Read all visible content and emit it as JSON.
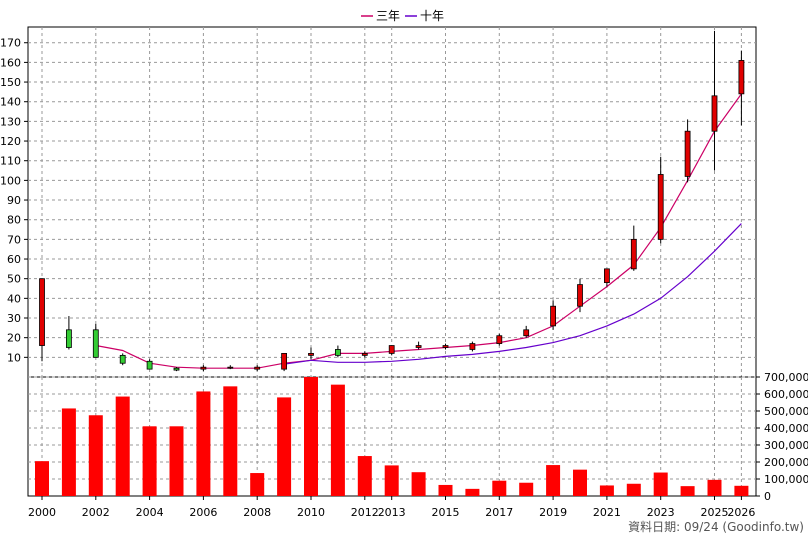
{
  "legend": {
    "items": [
      {
        "label": "三年",
        "color": "#cc0066"
      },
      {
        "label": "十年",
        "color": "#6600cc"
      }
    ]
  },
  "footer": {
    "text": "資料日期: 09/24 (Goodinfo.tw)"
  },
  "chart_data": [
    {
      "type": "candlestick",
      "panel": "price",
      "grid": true,
      "ylim": [
        0,
        178
      ],
      "yticks": [
        10,
        20,
        30,
        40,
        50,
        60,
        70,
        80,
        90,
        100,
        110,
        120,
        130,
        140,
        150,
        160,
        170
      ],
      "x_tick_labels": [
        "2000",
        "2002",
        "2004",
        "2006",
        "2008",
        "2010",
        "2012",
        "2013",
        "2015",
        "2017",
        "2019",
        "2021",
        "2023",
        "2025",
        "2026"
      ],
      "x": [
        "2000",
        "2001",
        "2002",
        "2003",
        "2004",
        "2005",
        "2006",
        "2007",
        "2008",
        "2009",
        "2010",
        "2011",
        "2012",
        "2013",
        "2014",
        "2015",
        "2016",
        "2017",
        "2018",
        "2019",
        "2020",
        "2021",
        "2022",
        "2023",
        "2024",
        "2025",
        "2026"
      ],
      "candles": [
        {
          "open": 16,
          "close": 50,
          "high": 50,
          "low": 8
        },
        {
          "open": 24,
          "close": 15,
          "high": 31,
          "low": 14
        },
        {
          "open": 24,
          "close": 10,
          "high": 27,
          "low": 10
        },
        {
          "open": 11,
          "close": 7,
          "high": 12,
          "low": 6
        },
        {
          "open": 8,
          "close": 4,
          "high": 9,
          "low": 4
        },
        {
          "open": 4.5,
          "close": 3.5,
          "high": 5,
          "low": 3
        },
        {
          "open": 4,
          "close": 5,
          "high": 6,
          "low": 3
        },
        {
          "open": 5,
          "close": 5,
          "high": 6,
          "low": 4
        },
        {
          "open": 4,
          "close": 5,
          "high": 6,
          "low": 3
        },
        {
          "open": 4,
          "close": 12,
          "high": 12,
          "low": 3
        },
        {
          "open": 11,
          "close": 12,
          "high": 15,
          "low": 9
        },
        {
          "open": 14,
          "close": 11,
          "high": 16,
          "low": 10
        },
        {
          "open": 11,
          "close": 12,
          "high": 13,
          "low": 10
        },
        {
          "open": 12,
          "close": 16,
          "high": 16,
          "low": 11
        },
        {
          "open": 15,
          "close": 16,
          "high": 18,
          "low": 14
        },
        {
          "open": 15,
          "close": 16,
          "high": 17,
          "low": 14
        },
        {
          "open": 14,
          "close": 17,
          "high": 18,
          "low": 13
        },
        {
          "open": 17,
          "close": 21,
          "high": 22,
          "low": 16
        },
        {
          "open": 21,
          "close": 24,
          "high": 26,
          "low": 20
        },
        {
          "open": 26,
          "close": 36,
          "high": 39,
          "low": 24
        },
        {
          "open": 36,
          "close": 47,
          "high": 50,
          "low": 33
        },
        {
          "open": 48,
          "close": 55,
          "high": 55,
          "low": 46
        },
        {
          "open": 55,
          "close": 70,
          "high": 77,
          "low": 54
        },
        {
          "open": 70,
          "close": 103,
          "high": 112,
          "low": 68
        },
        {
          "open": 102,
          "close": 125,
          "high": 131,
          "low": 99
        },
        {
          "open": 125,
          "close": 143,
          "high": 176,
          "low": 105
        },
        {
          "open": 144,
          "close": 161,
          "high": 166,
          "low": 128
        }
      ],
      "series": [
        {
          "name": "三年",
          "color": "#cc0066",
          "values": [
            null,
            null,
            16,
            13.5,
            7,
            5,
            4.5,
            4.5,
            4.5,
            7,
            8.5,
            12,
            12,
            13,
            14,
            15,
            16,
            17.5,
            20,
            26,
            36,
            46,
            57,
            76,
            100,
            125,
            144
          ]
        },
        {
          "name": "十年",
          "color": "#6600cc",
          "values": [
            null,
            null,
            null,
            null,
            null,
            null,
            null,
            null,
            null,
            6.5,
            8.5,
            7.5,
            7.5,
            8,
            9,
            10.5,
            11.5,
            13,
            15,
            17.5,
            21,
            26,
            32,
            40,
            51,
            64,
            78
          ]
        }
      ]
    },
    {
      "type": "bar",
      "panel": "volume",
      "grid": true,
      "ylim": [
        0,
        700000
      ],
      "yticks": [
        "0",
        "100,000",
        "200,000",
        "300,000",
        "400,000",
        "500,000",
        "600,000",
        "700,000"
      ],
      "categories": [
        "2000",
        "2001",
        "2002",
        "2003",
        "2004",
        "2005",
        "2006",
        "2007",
        "2008",
        "2009",
        "2010",
        "2011",
        "2012",
        "2013",
        "2014",
        "2015",
        "2016",
        "2017",
        "2018",
        "2019",
        "2020",
        "2021",
        "2022",
        "2023",
        "2024",
        "2025",
        "2026"
      ],
      "values": [
        205000,
        515000,
        475000,
        585000,
        410000,
        410000,
        615000,
        645000,
        135000,
        580000,
        720000,
        655000,
        235000,
        180000,
        140000,
        65000,
        42000,
        90000,
        78000,
        182000,
        155000,
        62000,
        72000,
        138000,
        58000,
        95000,
        60000
      ]
    }
  ]
}
